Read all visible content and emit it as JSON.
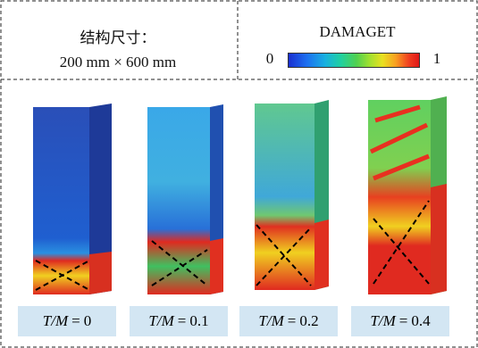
{
  "header": {
    "size_title": "结构尺寸：",
    "size_value": "200 mm × 600 mm",
    "legend_title": "DAMAGET",
    "legend_min": "0",
    "legend_max": "1"
  },
  "panels": [
    {
      "symbol": "T/M",
      "relation": "=",
      "value": "0"
    },
    {
      "symbol": "T/M",
      "relation": "=",
      "value": "0.1"
    },
    {
      "symbol": "T/M",
      "relation": "=",
      "value": "0.2"
    },
    {
      "symbol": "T/M",
      "relation": "=",
      "value": "0.4"
    }
  ]
}
